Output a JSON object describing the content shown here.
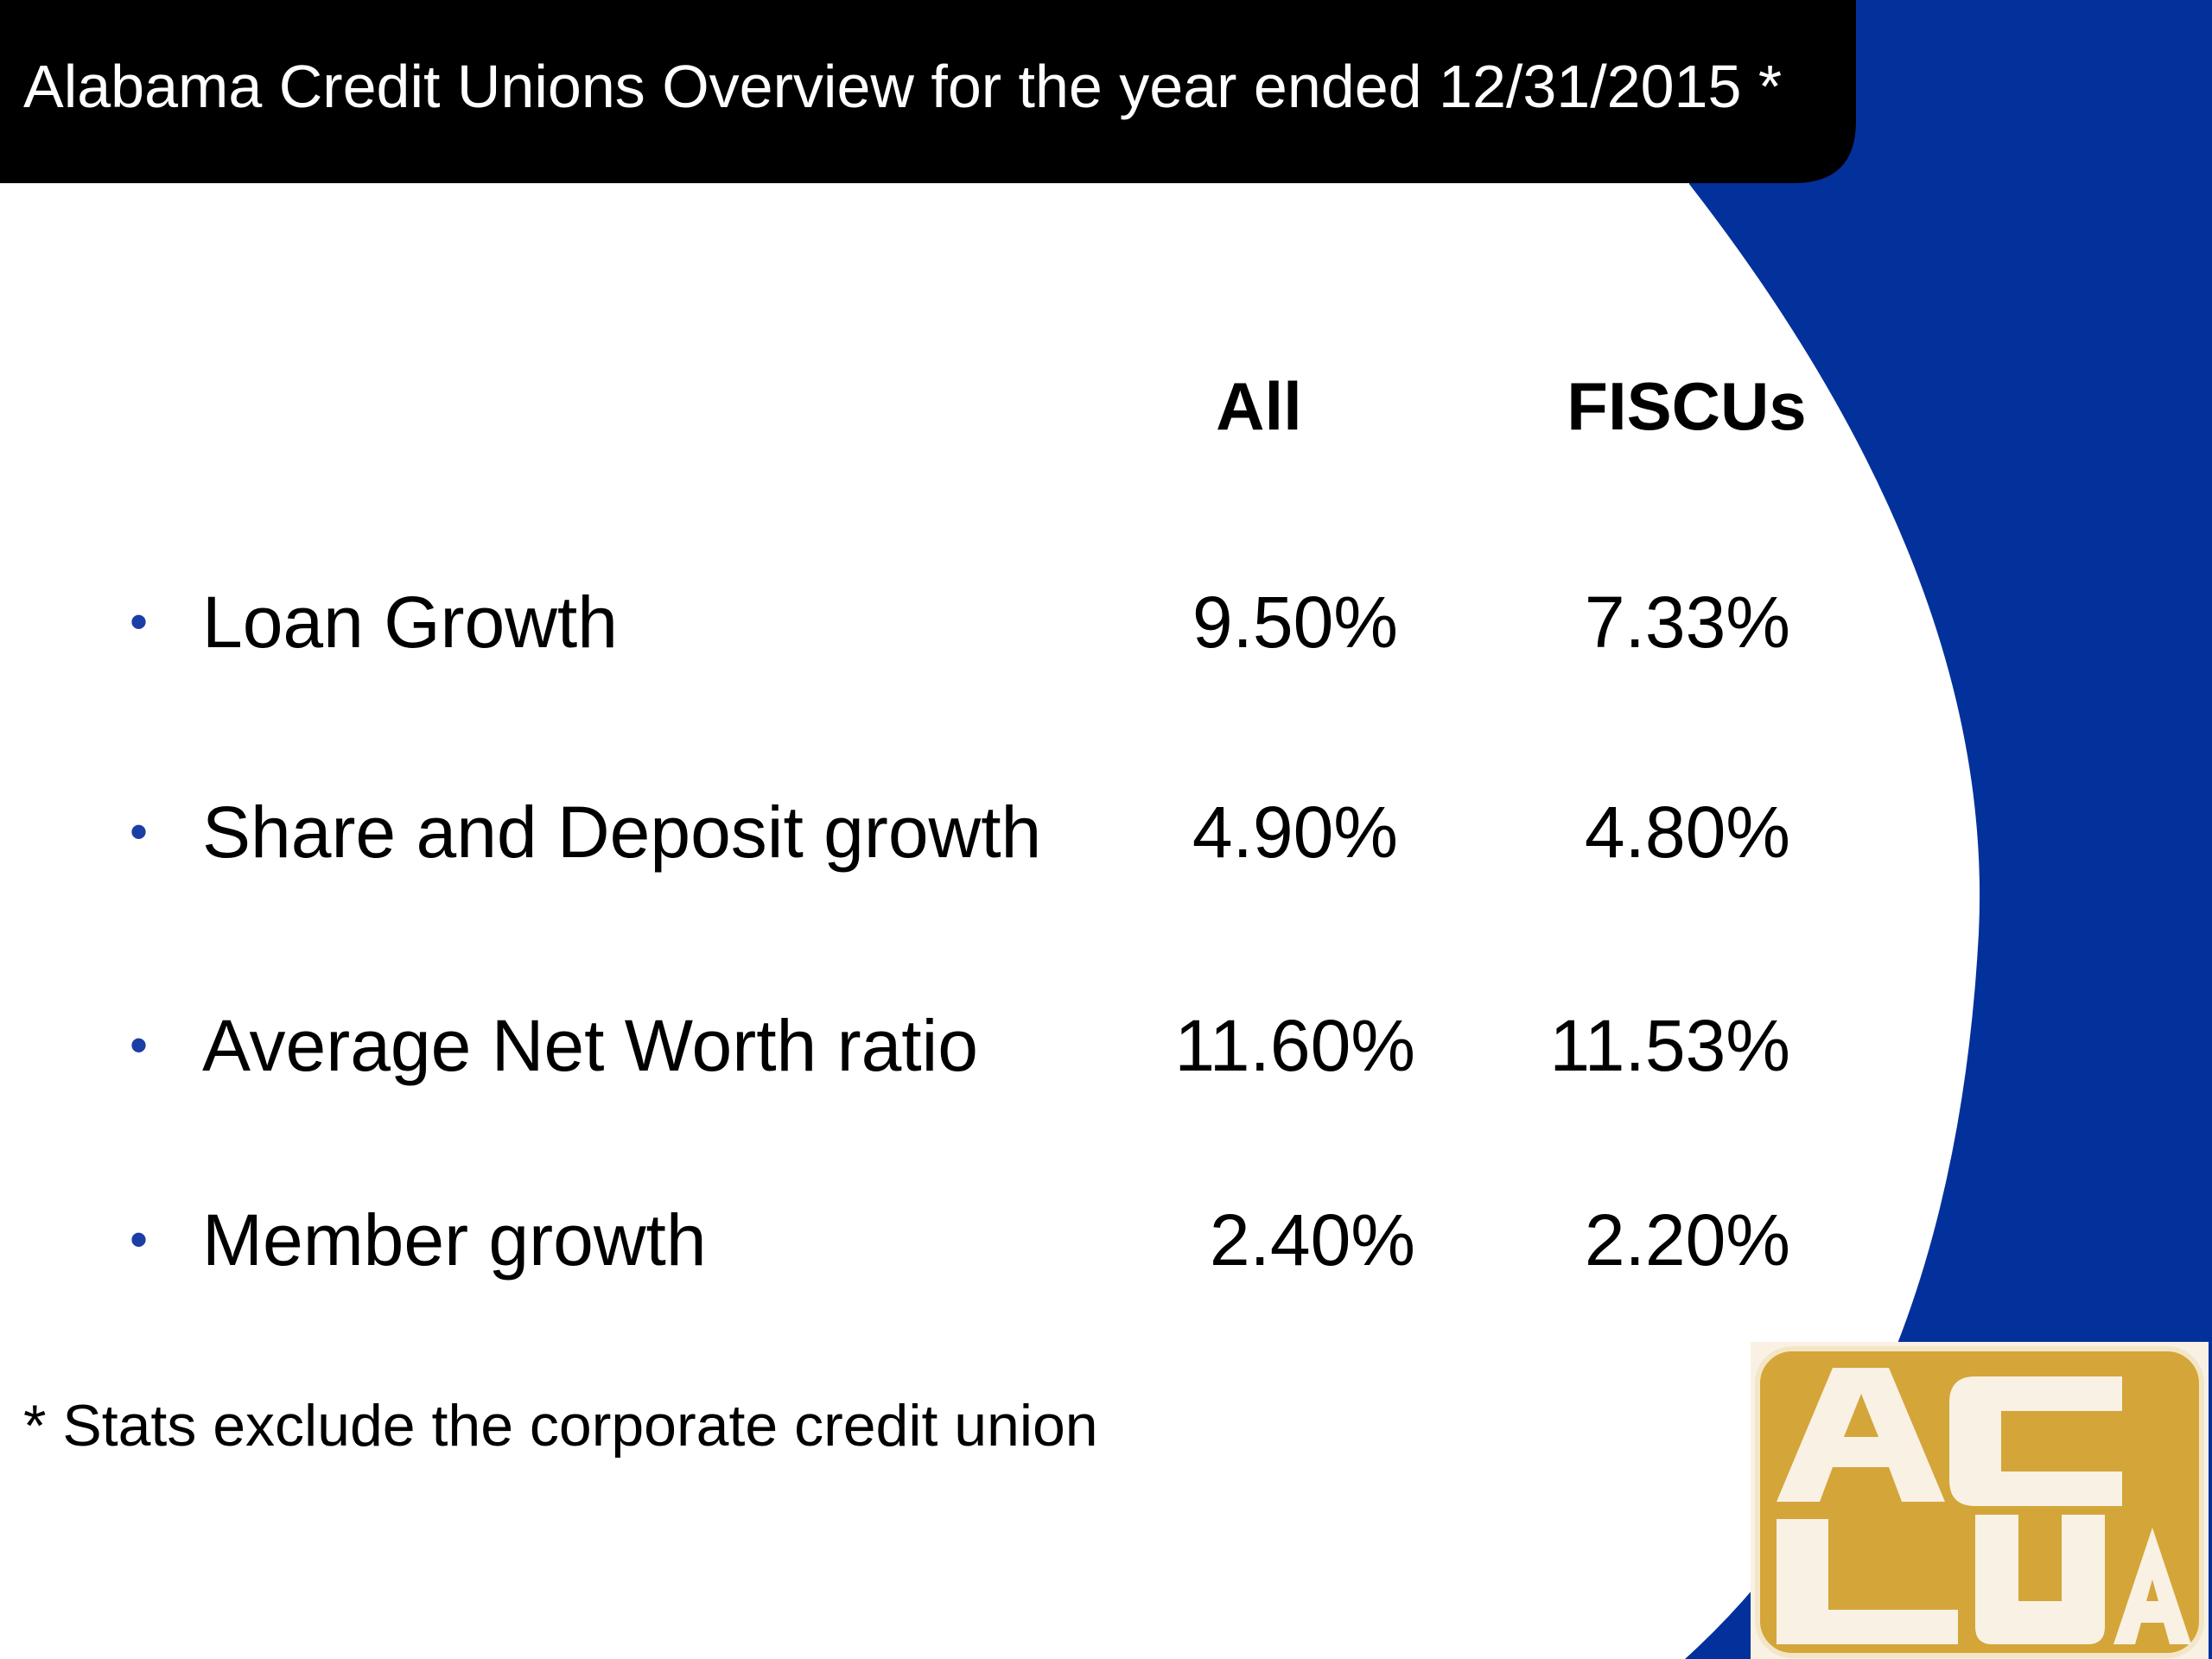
{
  "header": {
    "title": "Alabama Credit Unions Overview for the year ended 12/31/2015 *"
  },
  "table": {
    "columns": [
      "All",
      "FISCUs"
    ],
    "rows": [
      {
        "label": "Loan Growth",
        "all": "9.50%",
        "fiscus": "7.33%"
      },
      {
        "label": "Share and Deposit growth",
        "all": "4.90%",
        "fiscus": "4.80%"
      },
      {
        "label": "Average Net Worth ratio",
        "all": "11.60%",
        "fiscus": "11.53%"
      },
      {
        "label": "Member growth",
        "all": "2.40%",
        "fiscus": "2.20%"
      }
    ]
  },
  "footnote": "* Stats exclude the corporate credit union",
  "logo": {
    "text": "ACUA",
    "icon": "acua-logo-icon"
  },
  "colors": {
    "header_bg": "#000000",
    "accent_blue": "#03319b",
    "bullet_blue": "#1a3ea6",
    "logo_gold": "#d4a538",
    "logo_cream": "#f8f1e4"
  }
}
